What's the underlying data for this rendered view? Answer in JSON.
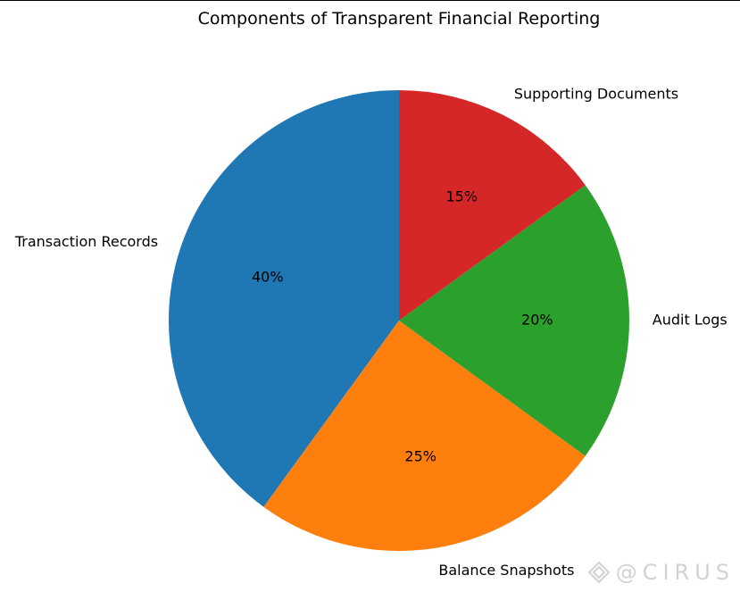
{
  "chart_data": {
    "type": "pie",
    "title": "Components of Transparent Financial Reporting",
    "labels": [
      "Transaction Records",
      "Balance Snapshots",
      "Audit Logs",
      "Supporting Documents"
    ],
    "values": [
      40,
      25,
      20,
      15
    ],
    "percent_labels": [
      "40%",
      "25%",
      "20%",
      "15%"
    ],
    "colors": [
      "#1f77b4",
      "#ff7f0e",
      "#2ca02c",
      "#d62728"
    ],
    "start_angle_deg": 90,
    "direction": "counterclockwise"
  },
  "watermark": {
    "text": "@CIRUS",
    "icon": "diamond-logo-icon"
  }
}
